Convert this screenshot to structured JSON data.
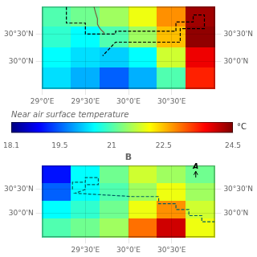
{
  "chart_data": [
    {
      "type": "heatmap",
      "cells": [
        [
          21.0,
          21.2,
          21.5,
          22.0,
          22.8,
          24.3
        ],
        [
          20.8,
          20.5,
          21.0,
          21.5,
          22.5,
          24.4
        ],
        [
          20.5,
          20.3,
          20.2,
          20.5,
          21.8,
          23.8
        ],
        [
          20.3,
          20.0,
          19.5,
          20.0,
          21.0,
          23.5
        ]
      ],
      "xlim": [
        29.0,
        31.0
      ],
      "ylim": [
        29.5,
        31.0
      ],
      "xticks": [
        {
          "value": 29.0,
          "label": "29°0'E"
        },
        {
          "value": 29.5,
          "label": "29°30'E"
        },
        {
          "value": 30.0,
          "label": "30°0'E"
        },
        {
          "value": 30.5,
          "label": "30°30'E"
        }
      ],
      "yticks": [
        {
          "value": 30.0,
          "label": "30°0'N"
        },
        {
          "value": 30.5,
          "label": "30°30'N"
        }
      ],
      "y2lim": [
        29.5,
        31.0
      ],
      "y2ticks": [
        {
          "value": 30.0,
          "label": "30°0'N"
        },
        {
          "value": 30.5,
          "label": "30°30'N"
        }
      ],
      "grid": true,
      "series": [
        {
          "type": "line",
          "line_style": "dashed",
          "color": "#000000",
          "x": [
            29.28,
            29.28,
            29.5,
            29.5,
            29.85,
            29.85,
            30.55,
            30.55,
            30.75,
            30.75,
            30.88,
            30.88,
            30.6,
            30.6,
            29.85,
            29.7
          ],
          "values": [
            31.0,
            30.7,
            30.7,
            30.5,
            30.5,
            30.55,
            30.55,
            30.72,
            30.72,
            30.85,
            30.85,
            30.6,
            30.6,
            30.35,
            30.35,
            30.1
          ]
        },
        {
          "type": "line",
          "line_style": "solid",
          "color": "#7a6040",
          "x": [
            29.6,
            29.62,
            29.64,
            29.64,
            29.66,
            29.68,
            29.7,
            29.72
          ],
          "values": [
            31.0,
            30.88,
            30.78,
            30.68,
            30.62,
            30.58,
            30.55,
            30.52
          ]
        }
      ]
    },
    {
      "type": "colorbar",
      "title": "Near air surface temperature",
      "unit": "°C",
      "xlim": [
        18.1,
        24.5
      ],
      "xticks": [
        18.1,
        19.5,
        21,
        22.5,
        24.5
      ],
      "colors": [
        "#000080",
        "#0000ff",
        "#0080ff",
        "#00ffff",
        "#80ff80",
        "#ffff00",
        "#ff8000",
        "#ff0000",
        "#800000"
      ]
    },
    {
      "type": "heatmap",
      "title": "B",
      "cells": [
        [
          19.0,
          20.5,
          21.2,
          21.8,
          21.5,
          21.2
        ],
        [
          19.5,
          20.5,
          21.0,
          21.5,
          22.0,
          21.5
        ],
        [
          20.5,
          20.8,
          21.2,
          22.0,
          22.8,
          21.8
        ],
        [
          21.0,
          21.2,
          21.5,
          23.0,
          24.0,
          22.0
        ]
      ],
      "xlim": [
        29.0,
        31.0
      ],
      "ylim": [
        29.5,
        31.0
      ],
      "xticks": [
        {
          "value": 29.5,
          "label": "29°30'E"
        },
        {
          "value": 30.0,
          "label": "30°0'E"
        },
        {
          "value": 30.5,
          "label": "30°30'E"
        }
      ],
      "yticks": [
        {
          "value": 30.0,
          "label": "30°0'N"
        },
        {
          "value": 30.5,
          "label": "30°30'N"
        }
      ],
      "y2lim": [
        29.5,
        31.0
      ],
      "y2ticks": [
        {
          "value": 30.0,
          "label": "30°0'N"
        },
        {
          "value": 30.5,
          "label": "30°30'N"
        }
      ],
      "grid": true,
      "series": [
        {
          "type": "line",
          "line_style": "dashed",
          "color": "#006060",
          "x": [
            29.35,
            29.35,
            29.5,
            29.5,
            29.65,
            29.65,
            29.5,
            29.5,
            29.38,
            30.05,
            30.35,
            30.35,
            30.55,
            30.55,
            30.7,
            30.7,
            30.85,
            30.85,
            31.0
          ],
          "values": [
            30.5,
            30.65,
            30.65,
            30.75,
            30.75,
            30.6,
            30.6,
            30.5,
            30.42,
            30.35,
            30.35,
            30.2,
            30.2,
            30.08,
            30.08,
            29.95,
            29.95,
            29.82,
            29.82
          ]
        }
      ],
      "annotations": [
        {
          "text": "A",
          "x": 30.78,
          "y": 30.9,
          "arrow_from": [
            30.78,
            30.75
          ],
          "arrow_to": [
            30.78,
            30.88
          ]
        }
      ]
    }
  ]
}
